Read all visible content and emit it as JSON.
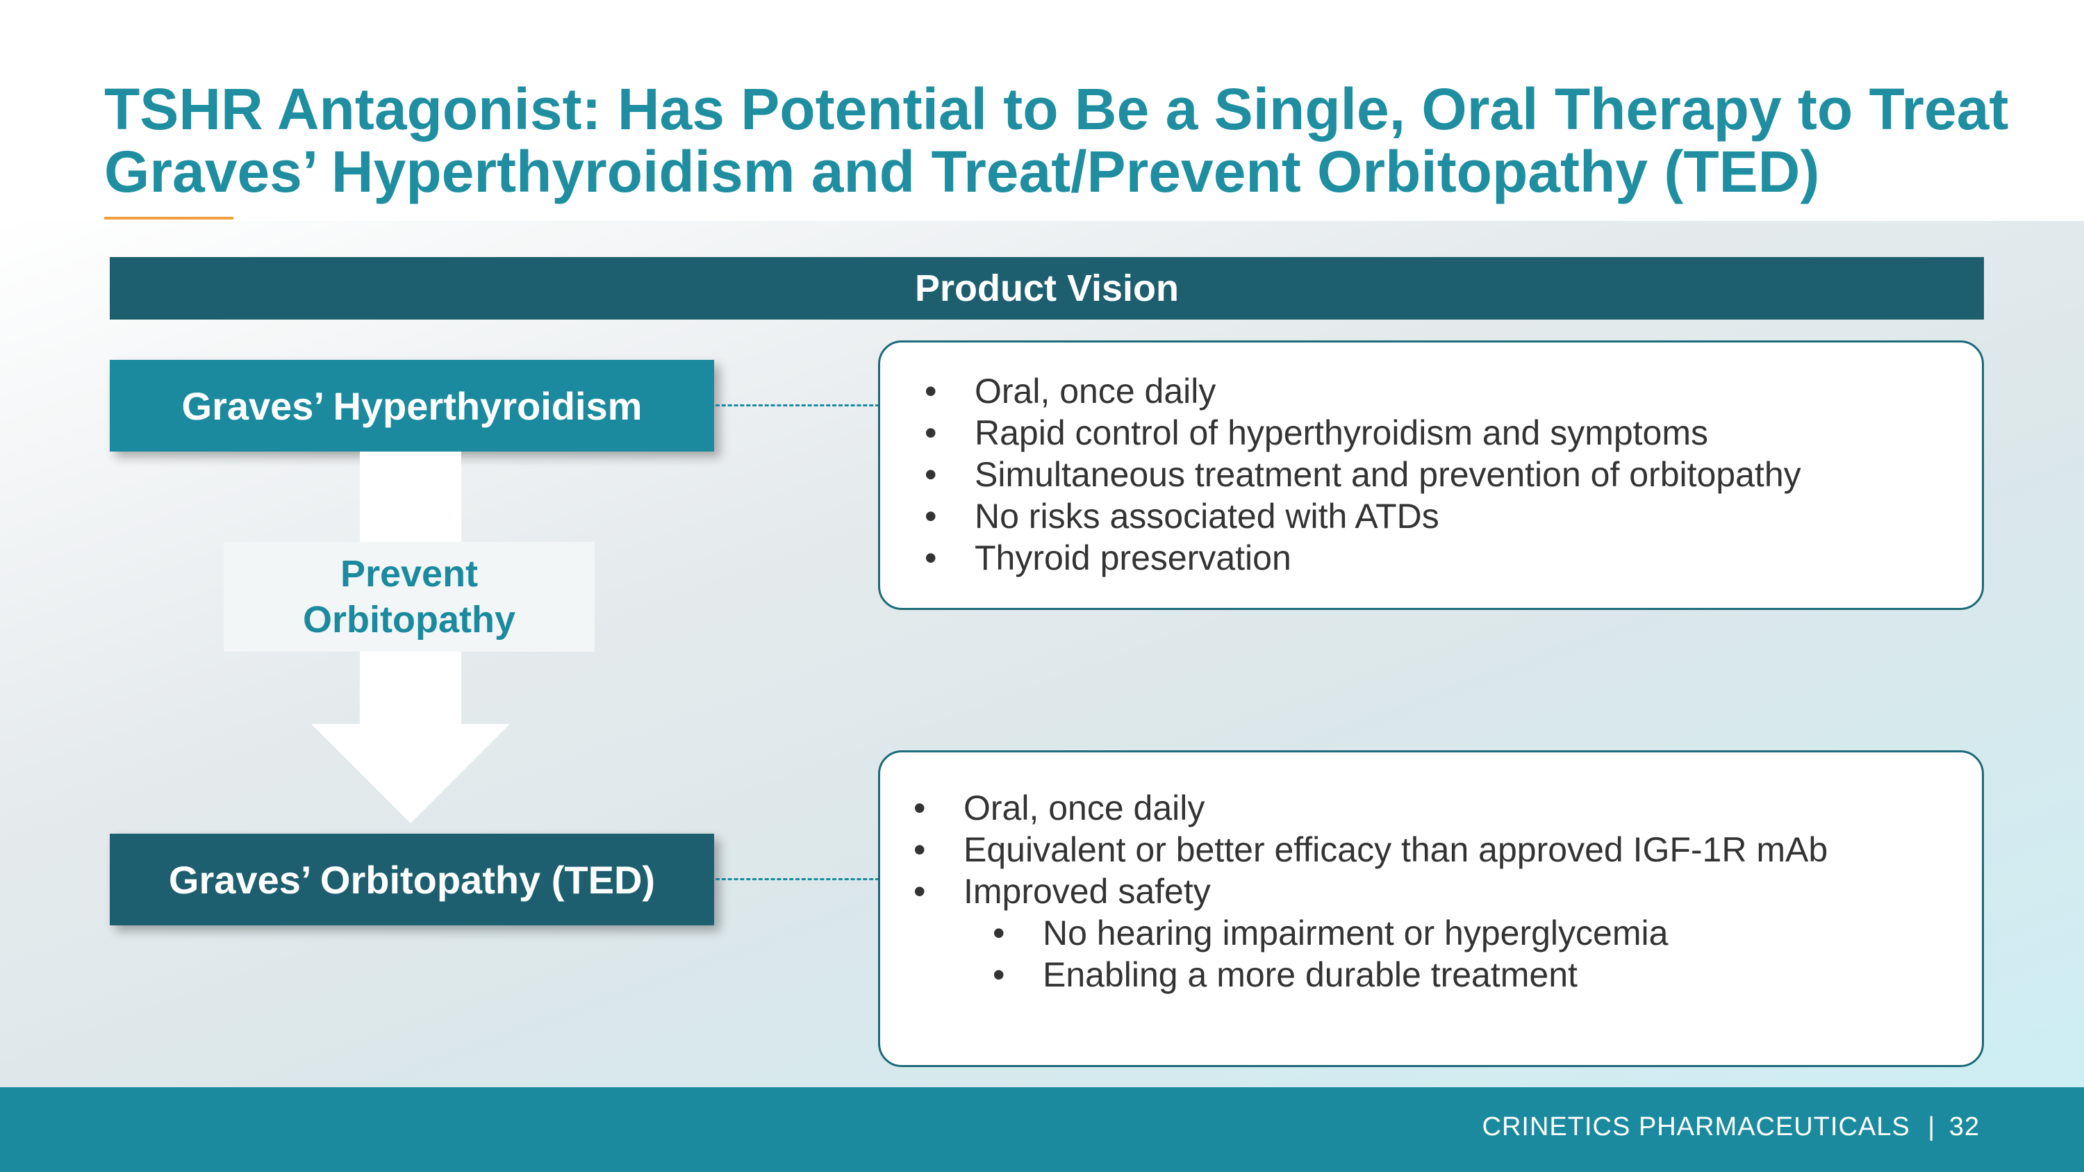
{
  "title": {
    "bold": "TSHR Antagonist:",
    "rest": " Has Potential to Be a Single, Oral Therapy to Treat Graves’ Hyperthyroidism and Treat/Prevent Orbitopathy (TED)"
  },
  "vision_header": "Product Vision",
  "hyper": {
    "label": "Graves’ Hyperthyroidism",
    "bullets": [
      "Oral, once daily",
      "Rapid control of hyperthyroidism and symptoms",
      "Simultaneous treatment and prevention of orbitopathy",
      "No risks associated with ATDs",
      "Thyroid preservation"
    ]
  },
  "arrow_label": {
    "line1": "Prevent",
    "line2": "Orbitopathy"
  },
  "orbit": {
    "label": "Graves’ Orbitopathy (TED)",
    "bullets": [
      "Oral, once daily",
      "Equivalent or better efficacy than approved IGF-1R mAb",
      "Improved safety"
    ],
    "sub_bullets": [
      "No hearing impairment or hyperglycemia",
      "Enabling a more durable treatment"
    ]
  },
  "footer": {
    "company": "CRINETICS PHARMACEUTICALS",
    "separator": "|",
    "page": "32"
  },
  "colors": {
    "teal": "#1b8a9e",
    "dark_teal": "#1d5f6e",
    "accent_orange": "#f0a03c"
  }
}
